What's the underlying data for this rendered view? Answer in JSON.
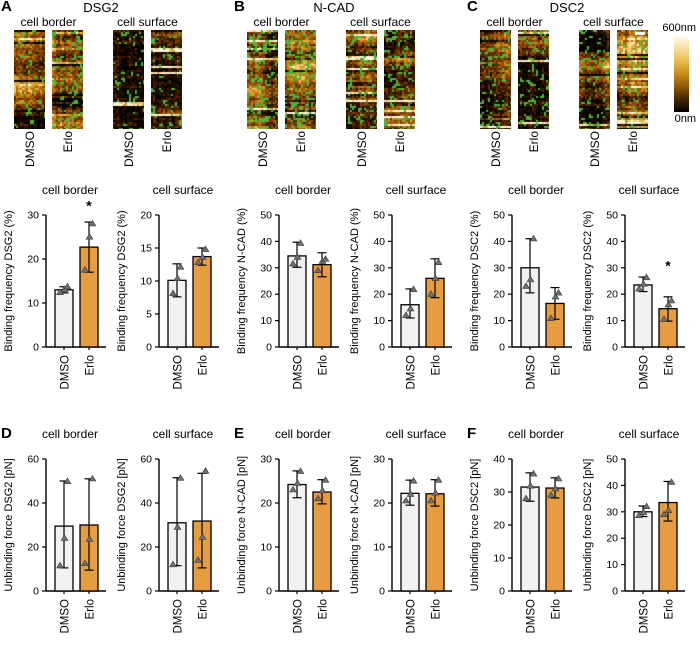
{
  "conditions": [
    "DMSO",
    "Erlo"
  ],
  "colors": {
    "dmso_bar": "#f1f1f1",
    "erlo_bar": "#e69c40",
    "marker": "#707070",
    "axis": "#000000",
    "green_overlay": "#4cb43c"
  },
  "top_panels": [
    {
      "letter": "A",
      "protein": "DSG2",
      "groups": [
        {
          "label": "cell border",
          "strips": [
            {
              "condition": "DMSO",
              "seed": 11,
              "green": 0.05,
              "bright": 0.5
            },
            {
              "condition": "Erlo",
              "seed": 12,
              "green": 0.1,
              "bright": 0.42
            }
          ]
        },
        {
          "label": "cell surface",
          "strips": [
            {
              "condition": "DMSO",
              "seed": 13,
              "green": 0.05,
              "bright": 0.32
            },
            {
              "condition": "Erlo",
              "seed": 14,
              "green": 0.07,
              "bright": 0.45
            }
          ]
        }
      ]
    },
    {
      "letter": "B",
      "protein": "N-CAD",
      "groups": [
        {
          "label": "cell border",
          "strips": [
            {
              "condition": "DMSO",
              "seed": 21,
              "green": 0.13,
              "bright": 0.38
            },
            {
              "condition": "Erlo",
              "seed": 22,
              "green": 0.15,
              "bright": 0.3
            }
          ]
        },
        {
          "label": "cell surface",
          "strips": [
            {
              "condition": "DMSO",
              "seed": 23,
              "green": 0.12,
              "bright": 0.3
            },
            {
              "condition": "Erlo",
              "seed": 24,
              "green": 0.12,
              "bright": 0.32
            }
          ]
        }
      ]
    },
    {
      "letter": "C",
      "protein": "DSC2",
      "colorbar": {
        "top_label": "600nm",
        "bottom_label": "0nm"
      },
      "groups": [
        {
          "label": "cell border",
          "strips": [
            {
              "condition": "DMSO",
              "seed": 31,
              "green": 0.09,
              "bright": 0.45
            },
            {
              "condition": "Erlo",
              "seed": 32,
              "green": 0.09,
              "bright": 0.5
            }
          ]
        },
        {
          "label": "cell surface",
          "strips": [
            {
              "condition": "DMSO",
              "seed": 33,
              "green": 0.09,
              "bright": 0.35
            },
            {
              "condition": "Erlo",
              "seed": 34,
              "green": 0.07,
              "bright": 0.52,
              "scalebar": true
            }
          ]
        }
      ]
    }
  ],
  "bottom_panels": [
    {
      "letter": "D"
    },
    {
      "letter": "E"
    },
    {
      "letter": "F"
    }
  ],
  "chart_data": [
    {
      "type": "bar",
      "panel": "A",
      "title": "cell border",
      "ylabel": "Binding frequency DSG2 (%)",
      "ylim": [
        0,
        30
      ],
      "yticks": [
        0,
        10,
        20,
        30
      ],
      "categories": [
        "DMSO",
        "Erlo"
      ],
      "values": [
        13,
        22.7
      ],
      "err_low": [
        12.3,
        17
      ],
      "err_high": [
        13.7,
        28.4
      ],
      "points": [
        [
          12.4,
          13.1,
          13.7
        ],
        [
          17.5,
          25,
          28
        ]
      ],
      "sig": [
        null,
        "*"
      ],
      "sig_y": 31
    },
    {
      "type": "bar",
      "panel": "A",
      "title": "cell surface",
      "ylabel": "Binding frequency DSG2 (%)",
      "ylim": [
        0,
        20
      ],
      "yticks": [
        0,
        5,
        10,
        15,
        20
      ],
      "categories": [
        "DMSO",
        "Erlo"
      ],
      "values": [
        10.1,
        13.7
      ],
      "err_low": [
        7.6,
        12.4
      ],
      "err_high": [
        12.6,
        15
      ],
      "points": [
        [
          8.1,
          10.4,
          12.1
        ],
        [
          12.8,
          13.6,
          14.8
        ]
      ],
      "sig": [
        null,
        null
      ],
      "sig_y": null
    },
    {
      "type": "bar",
      "panel": "B",
      "title": "cell border",
      "ylabel": "Binding frequency N-CAD (%)",
      "ylim": [
        0,
        50
      ],
      "yticks": [
        0,
        10,
        20,
        30,
        40,
        50
      ],
      "categories": [
        "DMSO",
        "Erlo"
      ],
      "values": [
        34.5,
        31.2
      ],
      "err_low": [
        30.2,
        26.6
      ],
      "err_high": [
        39.7,
        35.7
      ],
      "points": [
        [
          31.5,
          34,
          39.3
        ],
        [
          29,
          32.5,
          33.3
        ]
      ],
      "sig": [
        null,
        null
      ],
      "sig_y": null
    },
    {
      "type": "bar",
      "panel": "B",
      "title": "cell surface",
      "ylabel": "Binding frequency N-CAD (%)",
      "ylim": [
        0,
        50
      ],
      "yticks": [
        0,
        10,
        20,
        30,
        40,
        50
      ],
      "categories": [
        "DMSO",
        "Erlo"
      ],
      "values": [
        16,
        26
      ],
      "err_low": [
        11,
        18.7
      ],
      "err_high": [
        22,
        33.4
      ],
      "points": [
        [
          12,
          14.5,
          21.8
        ],
        [
          20,
          26,
          32
        ]
      ],
      "sig": [
        null,
        null
      ],
      "sig_y": null
    },
    {
      "type": "bar",
      "panel": "C",
      "title": "cell border",
      "ylabel": "Binding frequency DSC2 (%)",
      "ylim": [
        0,
        50
      ],
      "yticks": [
        0,
        10,
        20,
        30,
        40,
        50
      ],
      "categories": [
        "DMSO",
        "Erlo"
      ],
      "values": [
        30,
        16.5
      ],
      "err_low": [
        20.5,
        10.5
      ],
      "err_high": [
        41,
        22.5
      ],
      "points": [
        [
          23,
          25.5,
          41
        ],
        [
          10.8,
          19,
          20.5
        ]
      ],
      "sig": [
        null,
        null
      ],
      "sig_y": null
    },
    {
      "type": "bar",
      "panel": "C",
      "title": "cell surface",
      "ylabel": "Binding frequency DSC2 (%)",
      "ylim": [
        0,
        50
      ],
      "yticks": [
        0,
        10,
        20,
        30,
        40,
        50
      ],
      "categories": [
        "DMSO",
        "Erlo"
      ],
      "values": [
        23.5,
        14.5
      ],
      "err_low": [
        21,
        9.8
      ],
      "err_high": [
        26.5,
        19
      ],
      "points": [
        [
          22,
          23.8,
          26.3
        ],
        [
          10.5,
          16,
          17.5
        ]
      ],
      "sig": [
        null,
        "*"
      ],
      "sig_y": 29
    },
    {
      "type": "bar",
      "panel": "D",
      "title": "cell border",
      "ylabel": "Unbinding force DSG2 [pN]",
      "ylim": [
        0,
        60
      ],
      "yticks": [
        0,
        20,
        40,
        60
      ],
      "categories": [
        "DMSO",
        "Erlo"
      ],
      "values": [
        29.5,
        30
      ],
      "err_low": [
        10.5,
        9.5
      ],
      "err_high": [
        50,
        51
      ],
      "points": [
        [
          11.5,
          24,
          49.8
        ],
        [
          12.5,
          23.5,
          51
        ]
      ],
      "sig": [
        null,
        null
      ],
      "sig_y": null
    },
    {
      "type": "bar",
      "panel": "D",
      "title": "cell surface",
      "ylabel": "Unbinding force DSG2 [pN]",
      "ylim": [
        0,
        60
      ],
      "yticks": [
        0,
        20,
        40,
        60
      ],
      "categories": [
        "DMSO",
        "Erlo"
      ],
      "values": [
        31,
        31.8
      ],
      "err_low": [
        11.5,
        10.5
      ],
      "err_high": [
        51.5,
        53.5
      ],
      "points": [
        [
          12,
          29,
          51.3
        ],
        [
          14,
          24.5,
          54.5
        ]
      ],
      "sig": [
        null,
        null
      ],
      "sig_y": null
    },
    {
      "type": "bar",
      "panel": "E",
      "title": "cell border",
      "ylabel": "Unbinding force N-CAD [pN]",
      "ylim": [
        0,
        30
      ],
      "yticks": [
        0,
        10,
        20,
        30
      ],
      "categories": [
        "DMSO",
        "Erlo"
      ],
      "values": [
        24.2,
        22.5
      ],
      "err_low": [
        21.2,
        19.8
      ],
      "err_high": [
        27.3,
        25.3
      ],
      "points": [
        [
          23,
          24.5,
          27.2
        ],
        [
          21,
          22.8,
          25.2
        ]
      ],
      "sig": [
        null,
        null
      ],
      "sig_y": null
    },
    {
      "type": "bar",
      "panel": "E",
      "title": "cell surface",
      "ylabel": "Unbinding force N-CAD [pN]",
      "ylim": [
        0,
        30
      ],
      "yticks": [
        0,
        10,
        20,
        30
      ],
      "categories": [
        "DMSO",
        "Erlo"
      ],
      "values": [
        22.2,
        22.1
      ],
      "err_low": [
        19.5,
        19.3
      ],
      "err_high": [
        25.2,
        25.3
      ],
      "points": [
        [
          20.5,
          22,
          25
        ],
        [
          20.5,
          22.3,
          25.2
        ]
      ],
      "sig": [
        null,
        null
      ],
      "sig_y": null
    },
    {
      "type": "bar",
      "panel": "F",
      "title": "cell border",
      "ylabel": "Unbinding force DSC2 [pN]",
      "ylim": [
        0,
        40
      ],
      "yticks": [
        0,
        10,
        20,
        30,
        40
      ],
      "categories": [
        "DMSO",
        "Erlo"
      ],
      "values": [
        31.5,
        31.2
      ],
      "err_low": [
        27.2,
        28.2
      ],
      "err_high": [
        35.8,
        34.3
      ],
      "points": [
        [
          28,
          31.8,
          35.5
        ],
        [
          29,
          31,
          34
        ]
      ],
      "sig": [
        null,
        null
      ],
      "sig_y": null
    },
    {
      "type": "bar",
      "panel": "F",
      "title": "cell surface",
      "ylabel": "Unbinding force DSC2 [pN]",
      "ylim": [
        0,
        50
      ],
      "yticks": [
        0,
        10,
        20,
        30,
        40,
        50
      ],
      "categories": [
        "DMSO",
        "Erlo"
      ],
      "values": [
        30,
        33.5
      ],
      "err_low": [
        28.2,
        26.5
      ],
      "err_high": [
        32.2,
        41.5
      ],
      "points": [
        [
          28.6,
          29.8,
          32
        ],
        [
          29,
          30.5,
          41.2
        ]
      ],
      "sig": [
        null,
        null
      ],
      "sig_y": null
    }
  ]
}
